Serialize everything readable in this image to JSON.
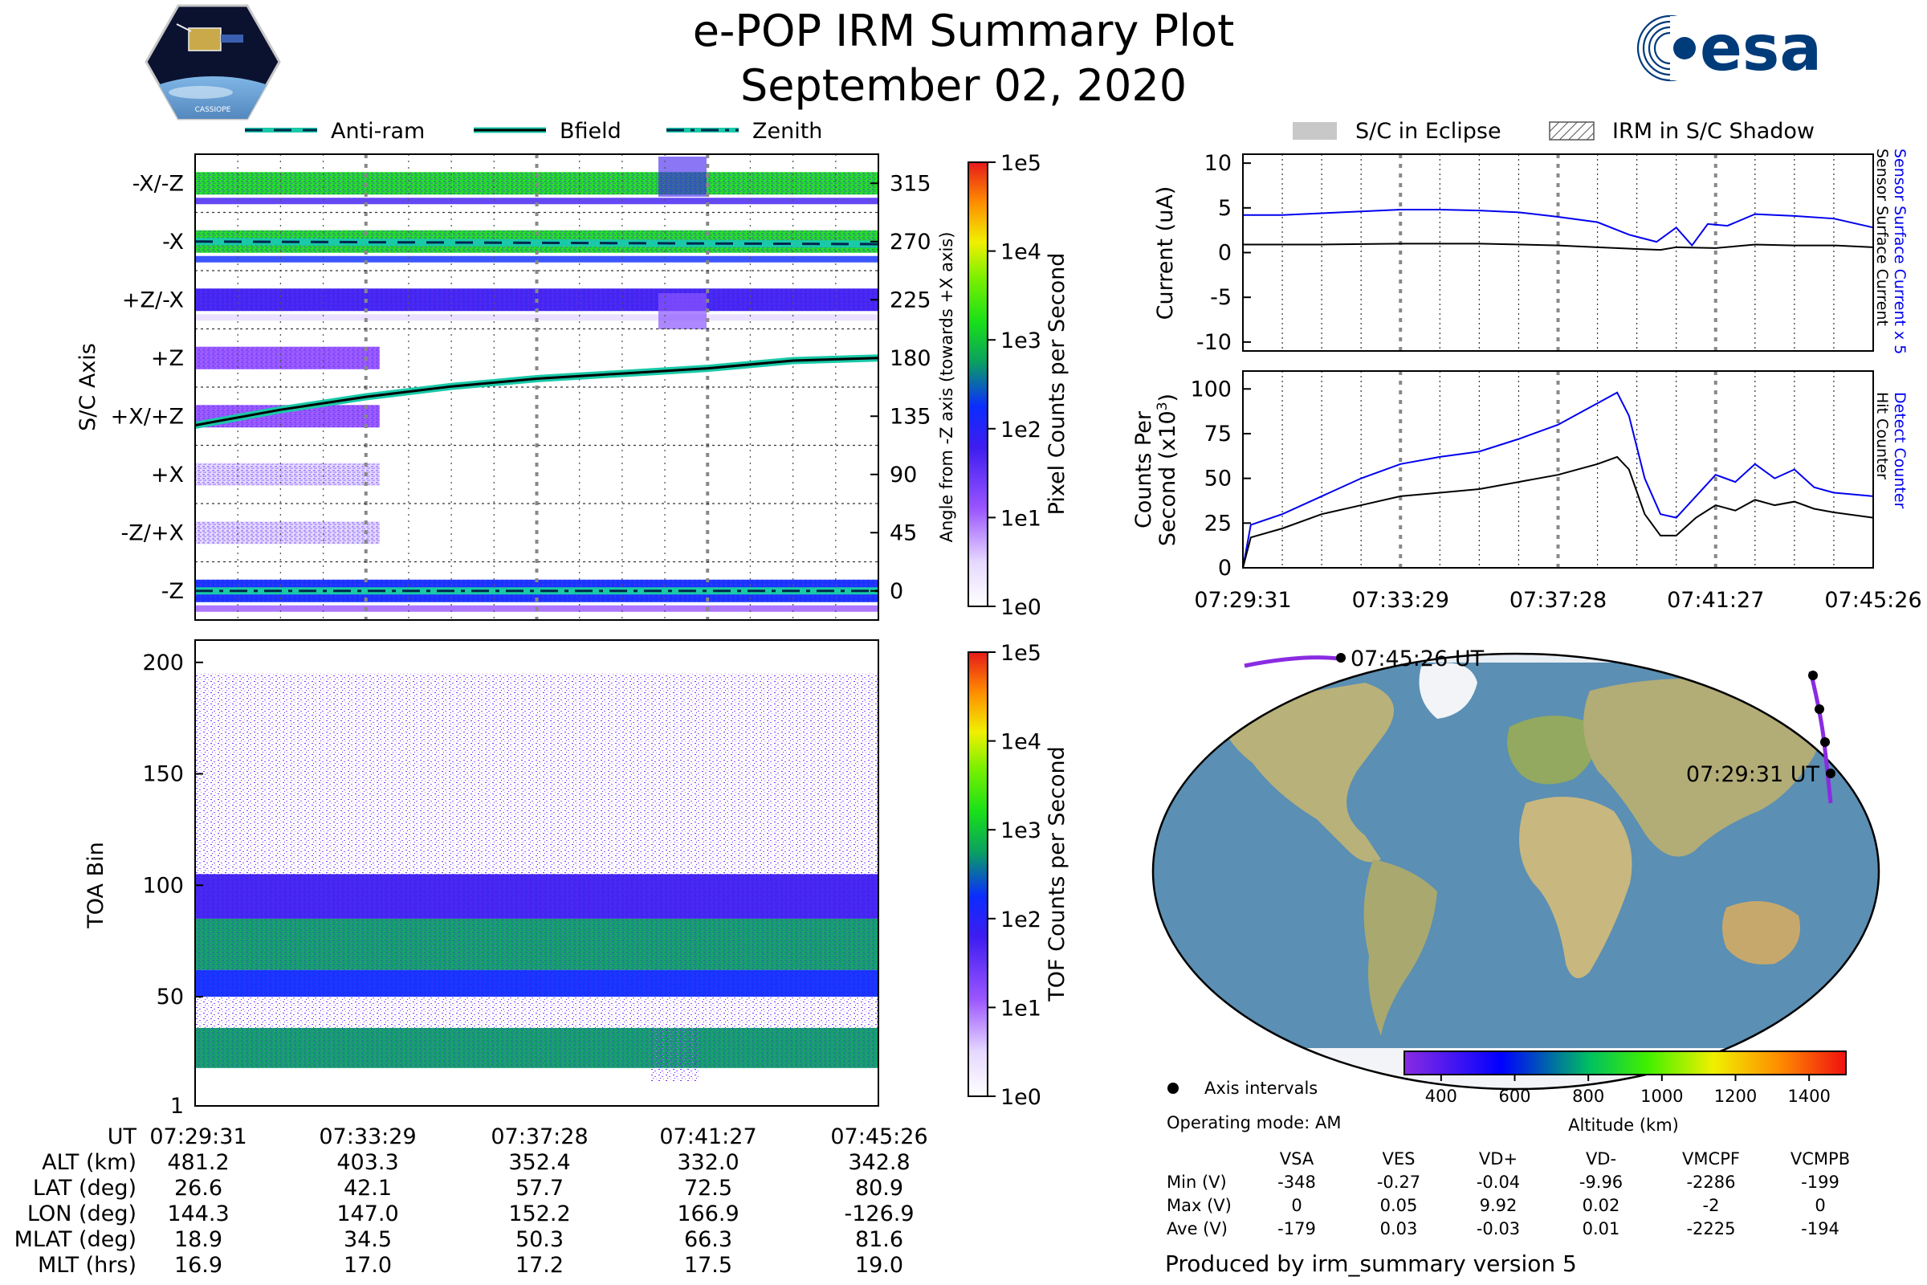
{
  "header": {
    "title_line1": "e-POP IRM Summary Plot",
    "title_line2": "September 02, 2020",
    "logo_left_text": "CASSIOPE",
    "logo_right_text": "esa"
  },
  "legend_top_left": [
    {
      "label": "Anti-ram",
      "style": "dashed"
    },
    {
      "label": "Bfield",
      "style": "solid"
    },
    {
      "label": "Zenith",
      "style": "dashdot"
    }
  ],
  "legend_top_right": [
    {
      "label": "S/C in Eclipse",
      "style": "gray-fill"
    },
    {
      "label": "IRM in S/C Shadow",
      "style": "hatch"
    }
  ],
  "colors": {
    "teal": "#19c9a8",
    "blue_line": "#0000ee",
    "black_line": "#000000",
    "ocean": "#5b8fb3",
    "land": "#b9b380",
    "ice": "#f2f4f7"
  },
  "chart_data": [
    {
      "id": "sc-axis",
      "type": "heatmap",
      "title": "",
      "ylabel": "S/C Axis",
      "y_tick_labels": [
        "-X/-Z",
        "-X",
        "+Z/-X",
        "+Z",
        "+X/+Z",
        "+X",
        "-Z/+X",
        "-Z"
      ],
      "y2label": "Angle from -Z axis (towards +X axis)",
      "y2_ticks": [
        315,
        270,
        225,
        180,
        135,
        90,
        45,
        0
      ],
      "y2lim": [
        -22.5,
        337.5
      ],
      "colorbar": {
        "label": "Pixel Counts per Second",
        "tick_labels": [
          "1e0",
          "1e1",
          "1e2",
          "1e3",
          "1e4",
          "1e5"
        ]
      },
      "rows": [
        {
          "axis": "-X/-Z",
          "level": 3.2,
          "coverage": "full"
        },
        {
          "axis": "-X",
          "level": 3.4,
          "coverage": "full"
        },
        {
          "axis": "+Z/-X",
          "level": 2.0,
          "coverage": "full"
        },
        {
          "axis": "+Z",
          "level": 1.2,
          "coverage": "early"
        },
        {
          "axis": "+X/+Z",
          "level": 1.5,
          "coverage": "early"
        },
        {
          "axis": "+X",
          "level": 1.0,
          "coverage": "early"
        },
        {
          "axis": "-Z/+X",
          "level": 1.0,
          "coverage": "early"
        },
        {
          "axis": "-Z",
          "level": 2.5,
          "coverage": "full"
        }
      ],
      "series": [
        {
          "name": "Anti-ram",
          "style": "dashed",
          "x": [
            0,
            16
          ],
          "y": [
            270,
            268
          ]
        },
        {
          "name": "Bfield",
          "style": "solid",
          "x": [
            0,
            2,
            4,
            6,
            8,
            10,
            12,
            14,
            16
          ],
          "y": [
            128,
            140,
            150,
            158,
            164,
            168,
            172,
            178,
            180
          ]
        },
        {
          "name": "Zenith",
          "style": "dashdot",
          "x": [
            0,
            16
          ],
          "y": [
            0,
            0
          ]
        }
      ]
    },
    {
      "id": "toa",
      "type": "heatmap",
      "ylabel": "TOA Bin",
      "y_ticks": [
        1,
        50,
        100,
        150,
        200
      ],
      "ylim": [
        1,
        210
      ],
      "colorbar": {
        "label": "TOF Counts per Second",
        "tick_labels": [
          "1e0",
          "1e1",
          "1e2",
          "1e3",
          "1e4",
          "1e5"
        ]
      },
      "bands": [
        {
          "from": 18,
          "to": 36,
          "level": 2.8
        },
        {
          "from": 50,
          "to": 62,
          "level": 2.5
        },
        {
          "from": 62,
          "to": 85,
          "level": 3.0
        },
        {
          "from": 85,
          "to": 105,
          "level": 1.8
        },
        {
          "from": 195,
          "to": 210,
          "level": 0.3
        }
      ]
    },
    {
      "id": "current",
      "type": "line",
      "ylabel": "Current (uA)",
      "y2label_blue": "Sensor Surface Current x 5",
      "y2label_black": "Sensor Surface Current",
      "y_ticks": [
        10,
        5,
        0,
        -5,
        -10
      ],
      "ylim": [
        -11,
        11
      ],
      "xlim": [
        0,
        16
      ],
      "series": [
        {
          "name": "Sensor Surface Current x 5",
          "color": "#0000ee",
          "x": [
            0,
            1,
            2,
            3,
            4,
            5,
            6,
            7,
            8,
            9,
            9.8,
            10.5,
            11,
            11.4,
            11.8,
            12.3,
            13,
            14,
            15,
            16
          ],
          "y": [
            4.2,
            4.2,
            4.4,
            4.6,
            4.8,
            4.8,
            4.7,
            4.5,
            4.0,
            3.4,
            2.0,
            1.2,
            2.8,
            0.8,
            3.2,
            3.0,
            4.3,
            4.1,
            3.8,
            2.8
          ]
        },
        {
          "name": "Sensor Surface Current",
          "color": "#000000",
          "x": [
            0,
            2,
            4,
            6,
            8,
            9,
            10,
            10.6,
            11,
            12,
            13,
            14,
            15,
            16
          ],
          "y": [
            0.9,
            0.9,
            1.0,
            1.0,
            0.8,
            0.6,
            0.4,
            0.3,
            0.6,
            0.5,
            0.9,
            0.8,
            0.8,
            0.6
          ]
        }
      ]
    },
    {
      "id": "counts",
      "type": "line",
      "ylabel": "Counts Per Second (x10³)",
      "y2label_blue": "Detect Counter",
      "y2label_black": "Hit Counter",
      "y_ticks": [
        0,
        25,
        50,
        75,
        100
      ],
      "ylim": [
        0,
        110
      ],
      "xlim": [
        0,
        16
      ],
      "x_tick_labels": [
        "07:29:31",
        "07:33:29",
        "07:37:28",
        "07:41:27",
        "07:45:26"
      ],
      "series": [
        {
          "name": "Detect Counter",
          "color": "#0000ee",
          "x": [
            0,
            0.2,
            1,
            2,
            3,
            4,
            5,
            6,
            7,
            8,
            9,
            9.5,
            9.8,
            10.2,
            10.6,
            11,
            11.5,
            12,
            12.5,
            13,
            13.5,
            14,
            14.5,
            15,
            16
          ],
          "y": [
            0,
            24,
            30,
            40,
            50,
            58,
            62,
            65,
            72,
            80,
            92,
            98,
            85,
            50,
            30,
            28,
            40,
            52,
            48,
            58,
            50,
            55,
            45,
            42,
            40
          ]
        },
        {
          "name": "Hit Counter",
          "color": "#000000",
          "x": [
            0,
            0.2,
            1,
            2,
            3,
            4,
            5,
            6,
            7,
            8,
            9,
            9.5,
            9.8,
            10.2,
            10.6,
            11,
            11.5,
            12,
            12.5,
            13,
            13.5,
            14,
            14.5,
            15,
            16
          ],
          "y": [
            0,
            17,
            22,
            30,
            35,
            40,
            42,
            44,
            48,
            52,
            58,
            62,
            55,
            30,
            18,
            18,
            28,
            35,
            32,
            38,
            35,
            37,
            33,
            31,
            28
          ]
        }
      ]
    },
    {
      "id": "map",
      "type": "scatter",
      "title": "",
      "points": [
        {
          "label": "07:45:26 UT",
          "lon": -126.9,
          "lat": 80.9
        },
        {
          "label": "",
          "lon": 166.9,
          "lat": 72.5
        },
        {
          "label": "",
          "lon": 152.2,
          "lat": 57.7
        },
        {
          "label": "",
          "lon": 147.0,
          "lat": 42.1
        },
        {
          "label": "07:29:31 UT",
          "lon": 144.3,
          "lat": 26.6
        }
      ],
      "colorbar": {
        "label": "Altitude (km)",
        "ticks": [
          400,
          600,
          800,
          1000,
          1200,
          1400
        ],
        "range": [
          300,
          1500
        ]
      },
      "legend": "Axis intervals"
    }
  ],
  "time_table": {
    "row_labels": [
      "UT",
      "ALT (km)",
      "LAT (deg)",
      "LON (deg)",
      "MLAT (deg)",
      "MLT (hrs)"
    ],
    "columns": [
      [
        "07:29:31",
        "481.2",
        "26.6",
        "144.3",
        "18.9",
        "16.9"
      ],
      [
        "07:33:29",
        "403.3",
        "42.1",
        "147.0",
        "34.5",
        "17.0"
      ],
      [
        "07:37:28",
        "352.4",
        "57.7",
        "152.2",
        "50.3",
        "17.2"
      ],
      [
        "07:41:27",
        "332.0",
        "72.5",
        "166.9",
        "66.3",
        "17.5"
      ],
      [
        "07:45:26",
        "342.8",
        "80.9",
        "-126.9",
        "81.6",
        "19.0"
      ]
    ]
  },
  "voltage_table": {
    "operating_mode": "Operating mode: AM",
    "headers": [
      "VSA",
      "VES",
      "VD+",
      "VD-",
      "VMCPF",
      "VCMPB"
    ],
    "rows": [
      {
        "label": "Min (V)",
        "values": [
          "-348",
          "-0.27",
          "-0.04",
          "-9.96",
          "-2286",
          "-199"
        ]
      },
      {
        "label": "Max (V)",
        "values": [
          "0",
          "0.05",
          "9.92",
          "0.02",
          "-2",
          "0"
        ]
      },
      {
        "label": "Ave (V)",
        "values": [
          "-179",
          "0.03",
          "-0.03",
          "0.01",
          "-2225",
          "-194"
        ]
      }
    ]
  },
  "footer": {
    "produced_by": "Produced by irm_summary version 5"
  }
}
